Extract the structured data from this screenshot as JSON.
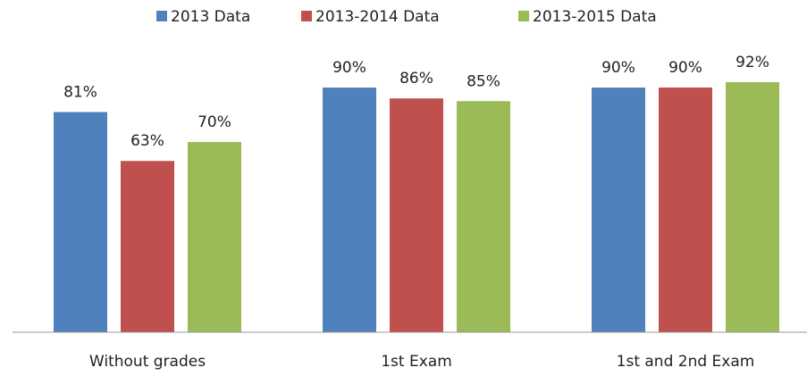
{
  "chart_data": {
    "type": "bar",
    "categories": [
      "Without grades",
      "1st Exam",
      "1st and 2nd Exam"
    ],
    "series": [
      {
        "name": "2013 Data",
        "color": "#4f81bd",
        "values": [
          81,
          90,
          90
        ],
        "value_labels": [
          "81%",
          "90%",
          "90%"
        ]
      },
      {
        "name": "2013-2014 Data",
        "color": "#c0504d",
        "values": [
          63,
          86,
          90
        ],
        "value_labels": [
          "63%",
          "86%",
          "90%"
        ]
      },
      {
        "name": "2013-2015 Data",
        "color": "#9bbb59",
        "values": [
          70,
          85,
          92
        ],
        "value_labels": [
          "70%",
          "85%",
          "92%"
        ]
      }
    ],
    "ylim": [
      0,
      100
    ],
    "legend": "top"
  }
}
